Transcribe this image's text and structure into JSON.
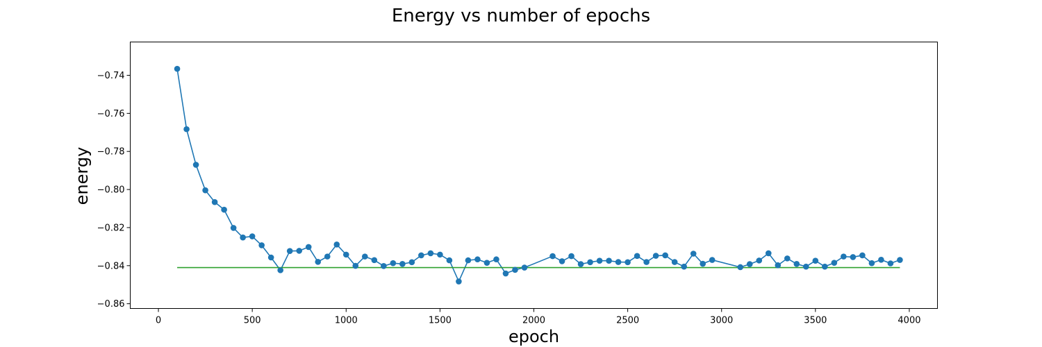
{
  "chart_data": {
    "type": "line",
    "title": "Energy vs number of epochs",
    "xlabel": "epoch",
    "ylabel": "energy",
    "xlim": [
      -150,
      4150
    ],
    "ylim": [
      -0.8625,
      -0.7225
    ],
    "xticks": [
      0,
      500,
      1000,
      1500,
      2000,
      2500,
      3000,
      3500,
      4000
    ],
    "yticks": [
      -0.86,
      -0.84,
      -0.82,
      -0.8,
      -0.78,
      -0.76,
      -0.74
    ],
    "xtick_labels": [
      "0",
      "500",
      "1000",
      "1500",
      "2000",
      "2500",
      "3000",
      "3500",
      "4000"
    ],
    "ytick_labels": [
      "−0.86",
      "−0.84",
      "−0.82",
      "−0.80",
      "−0.78",
      "−0.76",
      "−0.74"
    ],
    "grid": false,
    "colors": {
      "series": "#1f77b4",
      "reference": "#2ca02c"
    },
    "series": [
      {
        "marker": "circle",
        "x": [
          100,
          150,
          200,
          250,
          300,
          350,
          400,
          450,
          500,
          550,
          600,
          650,
          700,
          750,
          800,
          850,
          900,
          950,
          1000,
          1050,
          1100,
          1150,
          1200,
          1250,
          1300,
          1350,
          1400,
          1450,
          1500,
          1550,
          1600,
          1650,
          1700,
          1750,
          1800,
          1850,
          1900,
          1950,
          2100,
          2150,
          2200,
          2250,
          2300,
          2350,
          2400,
          2450,
          2500,
          2550,
          2600,
          2650,
          2700,
          2750,
          2800,
          2850,
          2900,
          2950,
          3100,
          3150,
          3200,
          3250,
          3300,
          3350,
          3400,
          3450,
          3500,
          3550,
          3600,
          3650,
          3700,
          3750,
          3800,
          3850,
          3900,
          3950
        ],
        "y": [
          -0.7366,
          -0.7683,
          -0.787,
          -0.8004,
          -0.8066,
          -0.8106,
          -0.8202,
          -0.8252,
          -0.8246,
          -0.8293,
          -0.8357,
          -0.8424,
          -0.8323,
          -0.8322,
          -0.8302,
          -0.838,
          -0.8352,
          -0.8289,
          -0.8342,
          -0.8401,
          -0.8352,
          -0.8371,
          -0.8402,
          -0.8387,
          -0.8391,
          -0.8382,
          -0.8346,
          -0.8335,
          -0.8342,
          -0.8372,
          -0.8483,
          -0.8372,
          -0.8367,
          -0.8385,
          -0.8367,
          -0.8441,
          -0.8422,
          -0.841,
          -0.835,
          -0.8377,
          -0.835,
          -0.8392,
          -0.8382,
          -0.8374,
          -0.8374,
          -0.8381,
          -0.8382,
          -0.8349,
          -0.8381,
          -0.8348,
          -0.8346,
          -0.8381,
          -0.8405,
          -0.8337,
          -0.839,
          -0.837,
          -0.8408,
          -0.8392,
          -0.8373,
          -0.8335,
          -0.8398,
          -0.8362,
          -0.8391,
          -0.8405,
          -0.8374,
          -0.8405,
          -0.8385,
          -0.8352,
          -0.8355,
          -0.8346,
          -0.8387,
          -0.8369,
          -0.8388,
          -0.837
        ]
      },
      {
        "line_style": "solid",
        "x": [
          100,
          3950
        ],
        "y": [
          -0.841,
          -0.841
        ]
      }
    ]
  }
}
